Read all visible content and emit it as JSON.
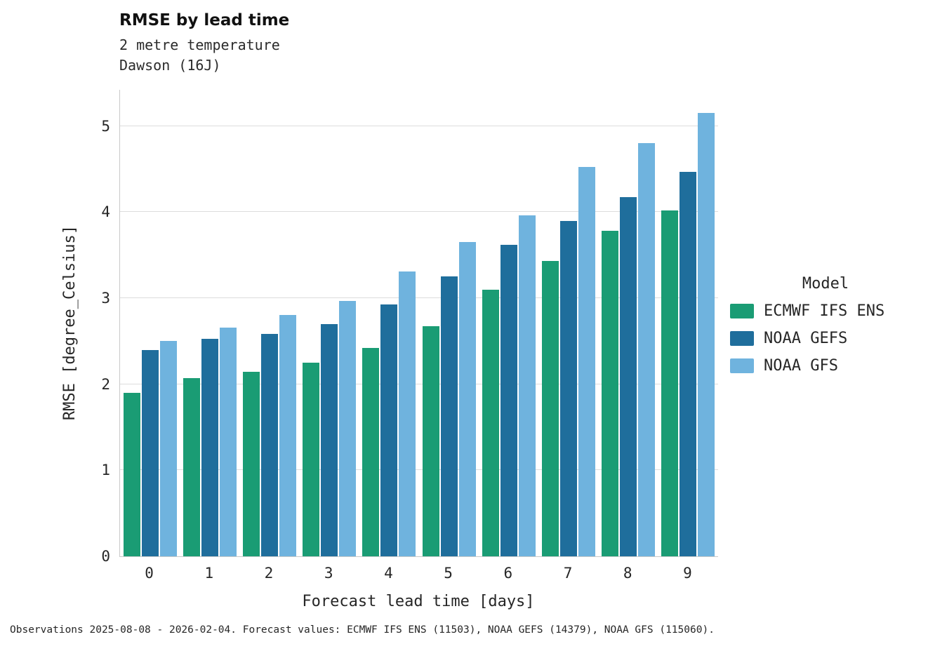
{
  "header": {
    "title": "RMSE by lead time",
    "subtitle_variable": "2 metre temperature",
    "subtitle_station": "Dawson (16J)"
  },
  "footer": {
    "text": "Observations 2025-08-08 - 2026-02-04. Forecast values: ECMWF IFS ENS (11503), NOAA GEFS (14379), NOAA GFS (115060)."
  },
  "chart_data": {
    "type": "bar",
    "title": "RMSE by lead time",
    "xlabel": "Forecast lead time [days]",
    "ylabel": "RMSE [degree_Celsius]",
    "legend_title": "Model",
    "legend_position": "right",
    "grid": true,
    "categories": [
      "0",
      "1",
      "2",
      "3",
      "4",
      "5",
      "6",
      "7",
      "8",
      "9"
    ],
    "yticks": [
      0,
      1,
      2,
      3,
      4,
      5
    ],
    "ylim": [
      0,
      5.42
    ],
    "series": [
      {
        "name": "ECMWF IFS ENS",
        "color": "#1a9c74",
        "values": [
          1.9,
          2.07,
          2.14,
          2.25,
          2.42,
          2.67,
          3.1,
          3.43,
          3.78,
          4.02
        ]
      },
      {
        "name": "NOAA GEFS",
        "color": "#1f6e9c",
        "values": [
          2.4,
          2.53,
          2.58,
          2.7,
          2.93,
          3.25,
          3.62,
          3.9,
          4.17,
          4.47
        ]
      },
      {
        "name": "NOAA GFS",
        "color": "#6fb3de",
        "values": [
          2.5,
          2.66,
          2.8,
          2.97,
          3.31,
          3.65,
          3.96,
          4.52,
          4.8,
          5.15
        ]
      }
    ]
  }
}
